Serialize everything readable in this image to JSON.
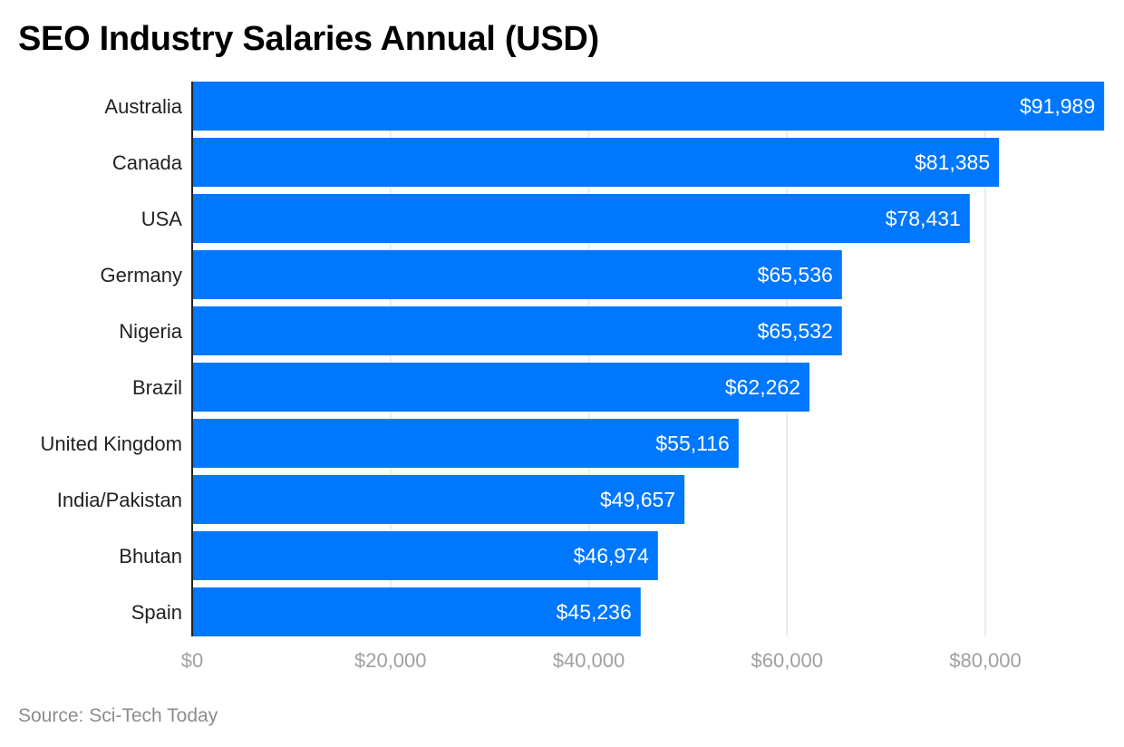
{
  "chart_data": {
    "type": "bar",
    "orientation": "horizontal",
    "title": "SEO Industry Salaries Annual (USD)",
    "source": "Source: Sci-Tech Today",
    "categories": [
      "Australia",
      "Canada",
      "USA",
      "Germany",
      "Nigeria",
      "Brazil",
      "United Kingdom",
      "India/Pakistan",
      "Bhutan",
      "Spain"
    ],
    "values": [
      91989,
      81385,
      78431,
      65536,
      65532,
      62262,
      55116,
      49657,
      46974,
      45236
    ],
    "value_labels": [
      "$91,989",
      "$81,385",
      "$78,431",
      "$65,536",
      "$65,532",
      "$62,262",
      "$55,116",
      "$49,657",
      "$46,974",
      "$45,236"
    ],
    "x_ticks": [
      0,
      20000,
      40000,
      60000,
      80000
    ],
    "x_tick_labels": [
      "$0",
      "$20,000",
      "$40,000",
      "$60,000",
      "$80,000"
    ],
    "xlim": [
      0,
      92000
    ],
    "xlabel": "",
    "ylabel": "",
    "grid": true,
    "bar_color": "#0077ff",
    "grid_color": "#e6e6e6"
  }
}
